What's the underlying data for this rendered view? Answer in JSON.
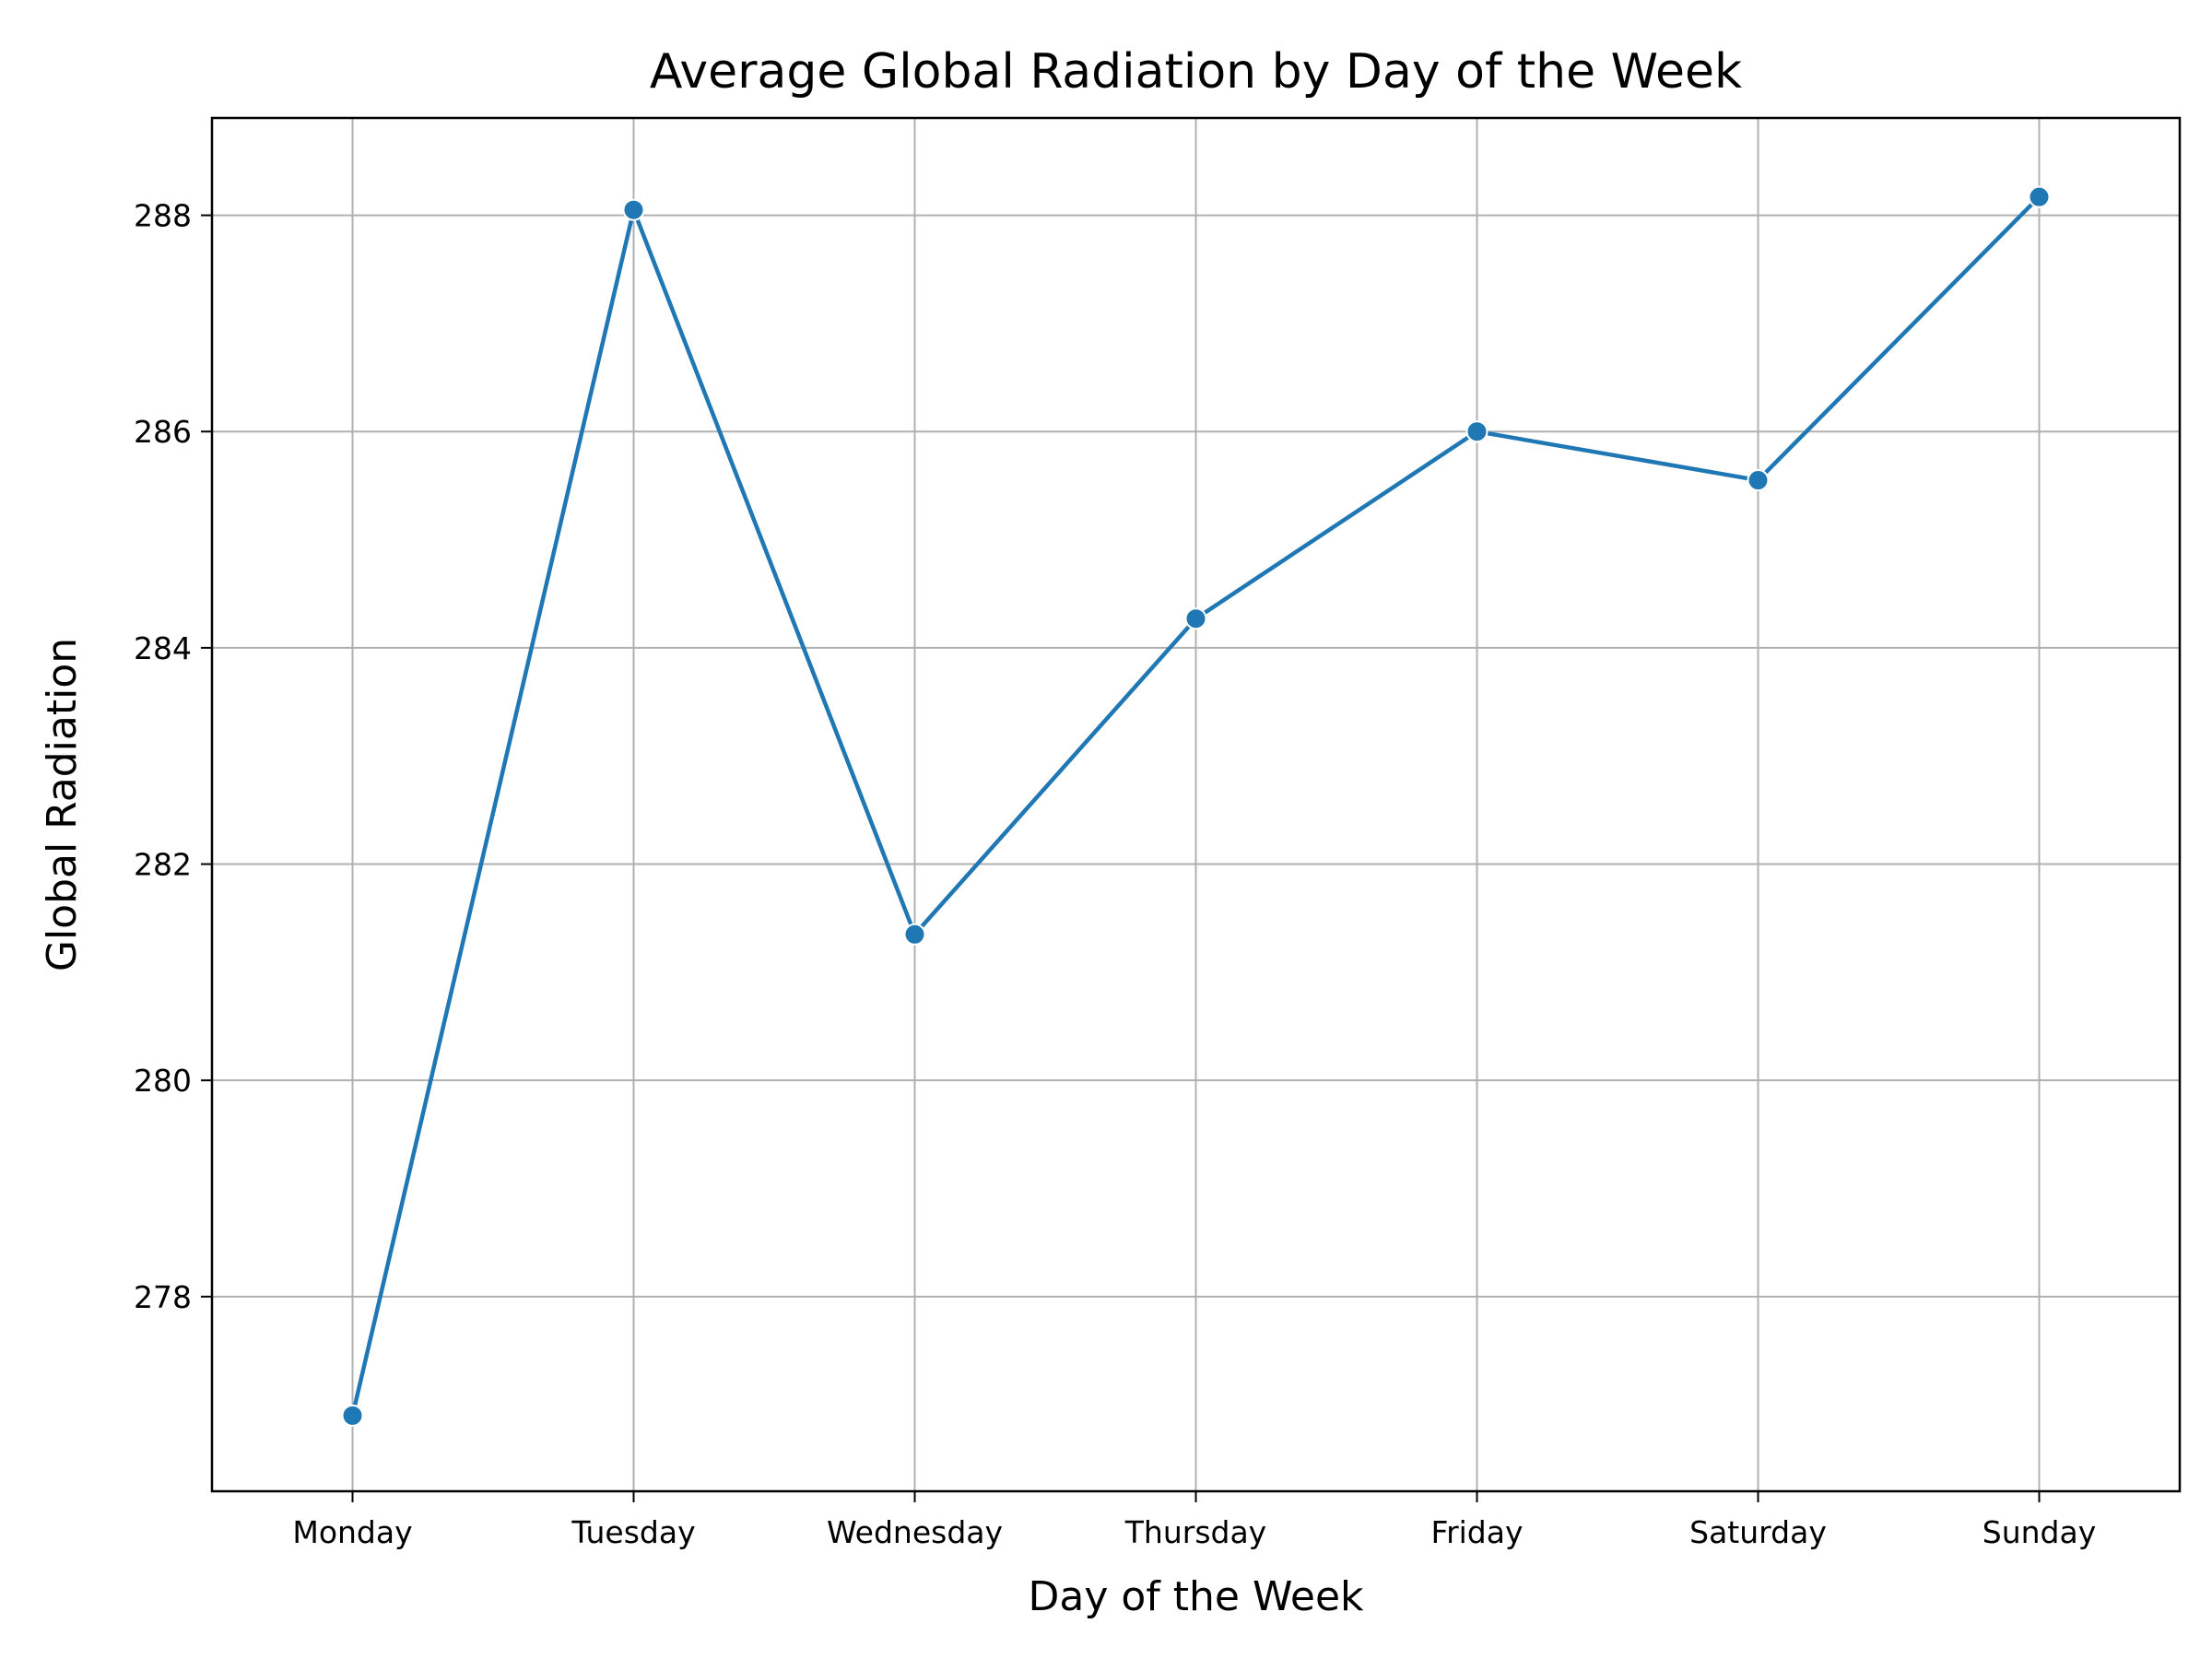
{
  "chart_data": {
    "type": "line",
    "title": "Average Global Radiation by Day of the Week",
    "xlabel": "Day of the Week",
    "ylabel": "Global Radiation",
    "categories": [
      "Monday",
      "Tuesday",
      "Wednesday",
      "Thursday",
      "Friday",
      "Saturday",
      "Sunday"
    ],
    "series": [
      {
        "values": [
          276.9,
          288.05,
          281.35,
          284.27,
          286.0,
          285.55,
          288.17
        ],
        "color": "#1f77b4"
      }
    ],
    "ylim": [
      276.2,
      288.9
    ],
    "yticks": [
      278,
      280,
      282,
      284,
      286,
      288
    ],
    "grid": true,
    "legend": "none"
  }
}
